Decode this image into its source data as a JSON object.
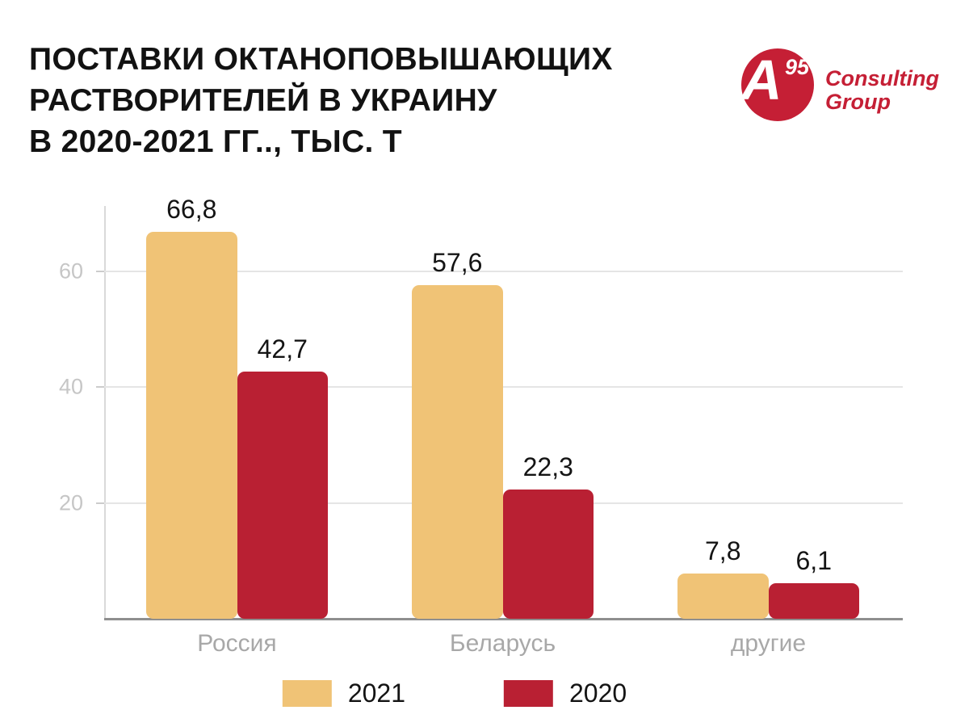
{
  "header": {
    "title": "ПОСТАВКИ ОКТАНОПОВЫШАЮЩИХ\nРАСТВОРИТЕЛЕЙ В УКРАИНУ\nВ 2020-2021 ГГ.., ТЫС. Т"
  },
  "logo": {
    "letter": "A",
    "superscript": "95",
    "line1": "Consulting",
    "line2": "Group",
    "color": "#c51f35"
  },
  "chart_data": {
    "type": "bar",
    "title": "ПОСТАВКИ ОКТАНОПОВЫШАЮЩИХ РАСТВОРИТЕЛЕЙ В УКРАИНУ В 2020-2021 ГГ.., ТЫС. Т",
    "categories": [
      "Россия",
      "Беларусь",
      "другие"
    ],
    "series": [
      {
        "name": "2021",
        "color": "#f0c376",
        "values": [
          66.8,
          57.6,
          7.8
        ],
        "labels": [
          "66,8",
          "57,6",
          "7,8"
        ]
      },
      {
        "name": "2020",
        "color": "#b92033",
        "values": [
          42.7,
          22.3,
          6.1
        ],
        "labels": [
          "42,7",
          "22,3",
          "6,1"
        ]
      }
    ],
    "yticks": [
      20,
      40,
      60
    ],
    "ylim": [
      0,
      71.3
    ],
    "grid": true,
    "legend_position": "bottom",
    "axis_color": "#8f8f8f",
    "gridline_color": "#e5e5e5",
    "tick_label_color": "#c6c6c6",
    "category_label_color": "#a8a8a8",
    "value_label_color": "#141414"
  }
}
